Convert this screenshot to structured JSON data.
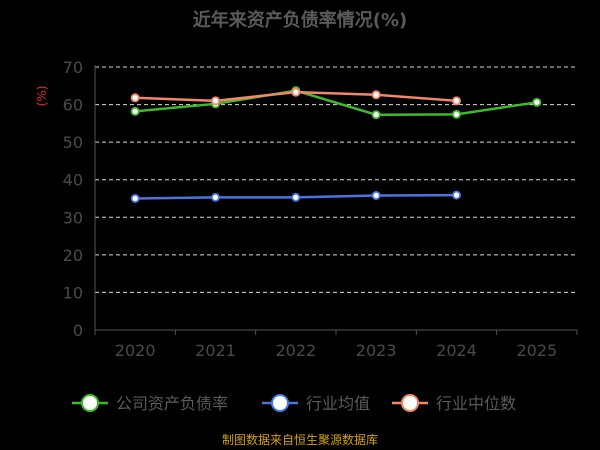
{
  "chart_data": {
    "type": "line",
    "title": "近年来资产负债率情况(%)",
    "unit_label": "(%)",
    "categories": [
      "2020",
      "2021",
      "2022",
      "2023",
      "2024",
      "2025"
    ],
    "ylim": [
      0,
      70
    ],
    "yticks": [
      0,
      10,
      20,
      30,
      40,
      50,
      60,
      70
    ],
    "grid": true,
    "legend_position": "bottom",
    "series": [
      {
        "name": "公司资产负债率",
        "color": "#3dbb2b",
        "values": [
          58.2,
          60.2,
          63.7,
          57.3,
          57.4,
          60.6
        ]
      },
      {
        "name": "行业均值",
        "color": "#4a74e0",
        "values": [
          35.0,
          35.3,
          35.3,
          35.8,
          35.9,
          null
        ]
      },
      {
        "name": "行业中位数",
        "color": "#f5866a",
        "values": [
          61.8,
          61.0,
          63.3,
          62.6,
          61.0,
          null
        ]
      }
    ],
    "source": "制图数据来自恒生聚源数据库"
  }
}
